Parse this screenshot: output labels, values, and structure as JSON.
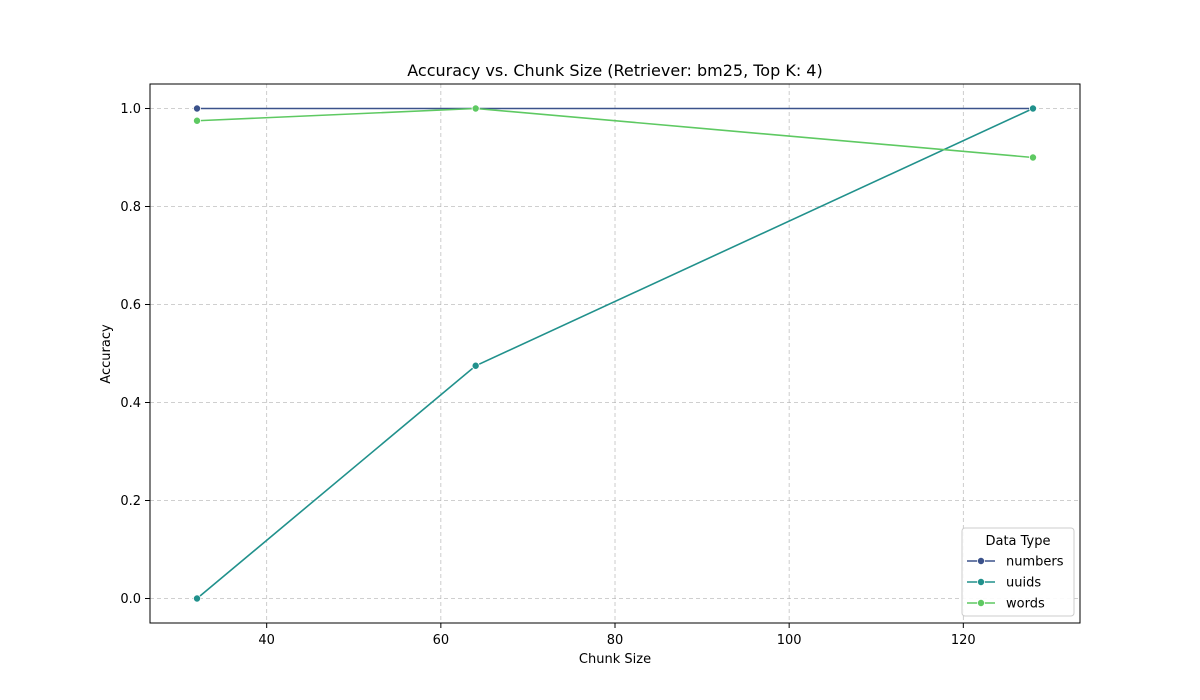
{
  "chart_data": {
    "type": "line",
    "title": "Accuracy vs. Chunk Size (Retriever: bm25, Top K: 4)",
    "xlabel": "Chunk Size",
    "ylabel": "Accuracy",
    "x": [
      32,
      64,
      128
    ],
    "xlim": [
      26.6,
      133.4
    ],
    "ylim": [
      -0.05,
      1.05
    ],
    "xticks": [
      40,
      60,
      80,
      100,
      120
    ],
    "yticks": [
      0.0,
      0.2,
      0.4,
      0.6,
      0.8,
      1.0
    ],
    "xtick_labels": [
      "40",
      "60",
      "80",
      "100",
      "120"
    ],
    "ytick_labels": [
      "0.0",
      "0.2",
      "0.4",
      "0.6",
      "0.8",
      "1.0"
    ],
    "grid": true,
    "legend": {
      "title": "Data Type",
      "placement": "lower-right"
    },
    "series": [
      {
        "name": "numbers",
        "values": [
          1.0,
          1.0,
          1.0
        ],
        "color": "#3b528b"
      },
      {
        "name": "uuids",
        "values": [
          0.0,
          0.475,
          1.0
        ],
        "color": "#21918c"
      },
      {
        "name": "words",
        "values": [
          0.975,
          1.0,
          0.9
        ],
        "color": "#5ec962"
      }
    ]
  }
}
